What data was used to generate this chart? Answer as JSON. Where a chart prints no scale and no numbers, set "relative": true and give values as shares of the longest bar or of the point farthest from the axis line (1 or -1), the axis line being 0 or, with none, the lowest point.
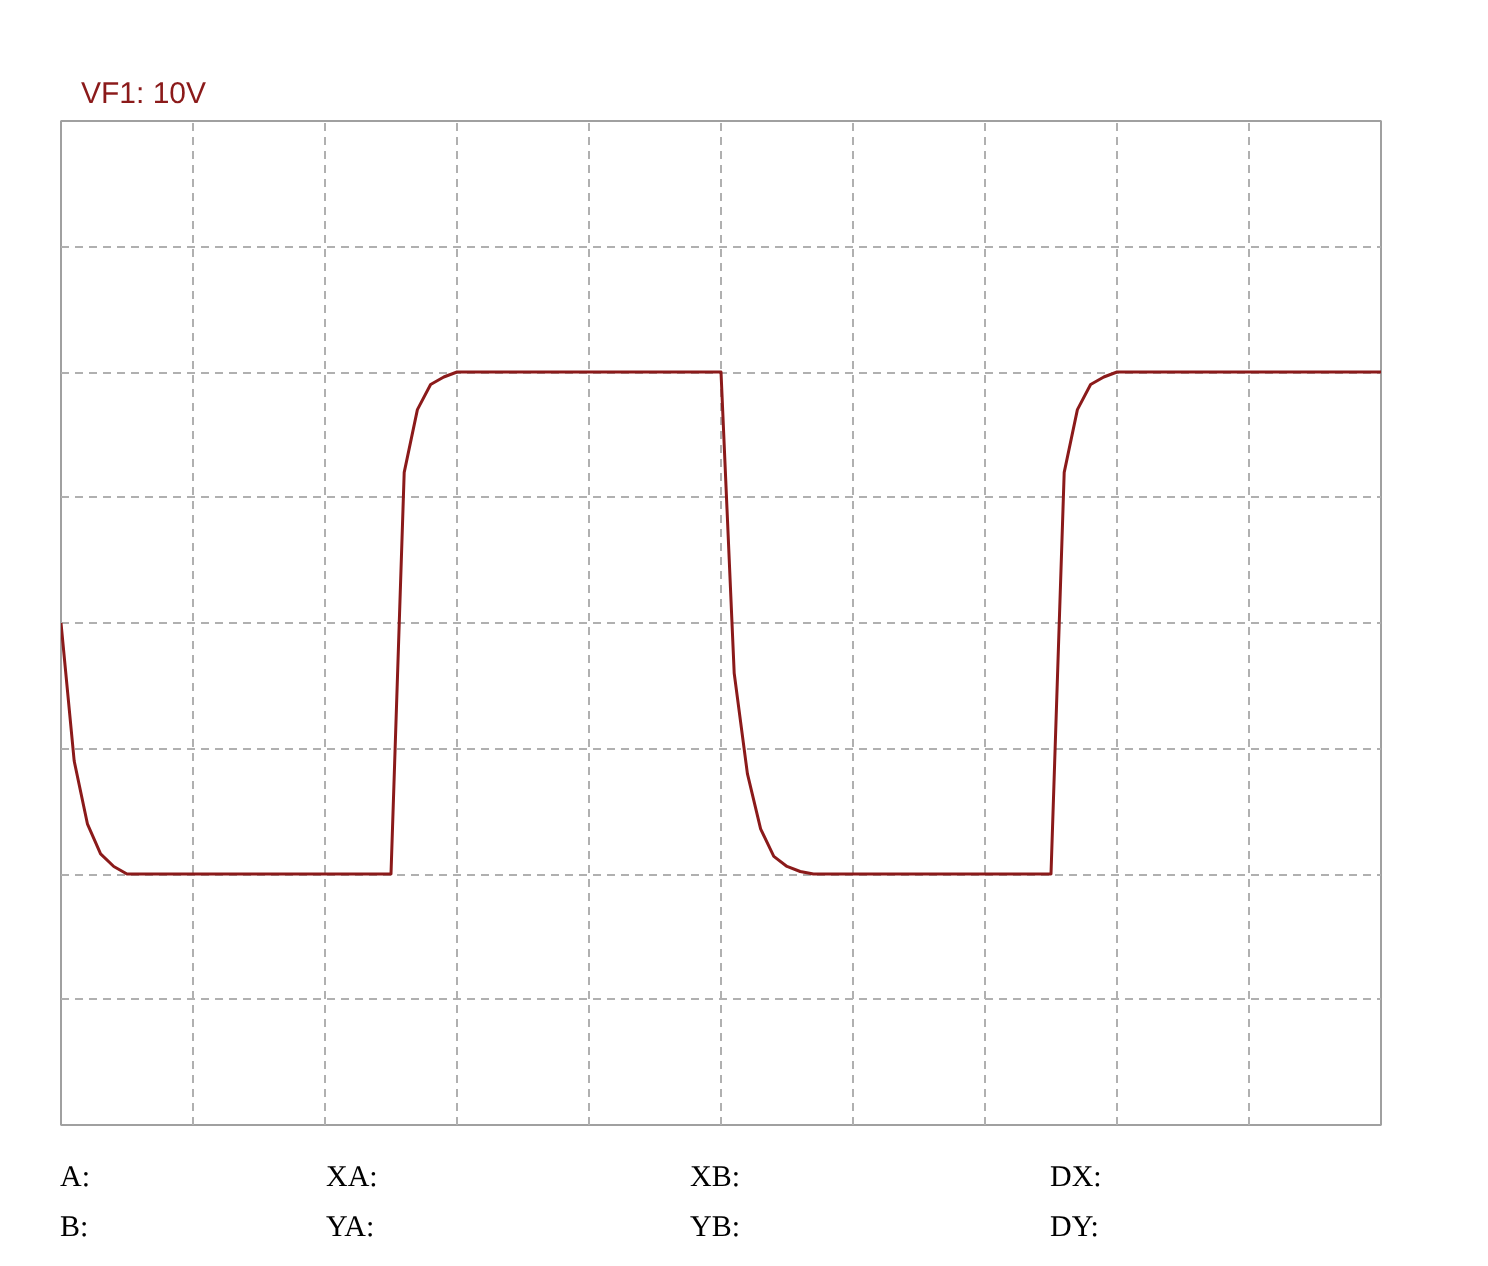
{
  "chart_data": {
    "type": "line",
    "title": "VF1: 10V",
    "relative": true,
    "grid": true,
    "marker": "none",
    "line_style": "solid",
    "categories": [
      null,
      null,
      null,
      null,
      null,
      null,
      null,
      null,
      null,
      null,
      null,
      null,
      null,
      null,
      null,
      null,
      null,
      null,
      null,
      null,
      null,
      null,
      null,
      null,
      null,
      null,
      null,
      null,
      null,
      null,
      null,
      null,
      null,
      null,
      null,
      null,
      null,
      null,
      null,
      null,
      null,
      null,
      null,
      null,
      null,
      null,
      null,
      null,
      null,
      null,
      null,
      null,
      null,
      null,
      null,
      null,
      null,
      null,
      null,
      null,
      null,
      null,
      null,
      null,
      null,
      null,
      null,
      null,
      null,
      null,
      null,
      null,
      null,
      null,
      null,
      null,
      null,
      null,
      null,
      null,
      null,
      null,
      null,
      null,
      null,
      null,
      null,
      null,
      null,
      null,
      null,
      null,
      null,
      null,
      null,
      null,
      null,
      null,
      null,
      null,
      null
    ],
    "series": [
      {
        "color": "#8b1a1a",
        "values": [
          0,
          -0.55,
          -0.8,
          -0.92,
          -0.97,
          -1,
          -1,
          -1,
          -1,
          -1,
          -1,
          -1,
          -1,
          -1,
          -1,
          -1,
          -1,
          -1,
          -1,
          -1,
          -1,
          -1,
          -1,
          -1,
          -1,
          -1,
          0.6,
          0.85,
          0.95,
          0.98,
          1,
          1,
          1,
          1,
          1,
          1,
          1,
          1,
          1,
          1,
          1,
          1,
          1,
          1,
          1,
          1,
          1,
          1,
          1,
          1,
          1,
          -0.2,
          -0.6,
          -0.82,
          -0.93,
          -0.97,
          -0.99,
          -1,
          -1,
          -1,
          -1,
          -1,
          -1,
          -1,
          -1,
          -1,
          -1,
          -1,
          -1,
          -1,
          -1,
          -1,
          -1,
          -1,
          -1,
          -1,
          0.6,
          0.85,
          0.95,
          0.98,
          1,
          1,
          1,
          1,
          1,
          1,
          1,
          1,
          1,
          1,
          1,
          1,
          1,
          1,
          1,
          1,
          1,
          1,
          1,
          1,
          1
        ]
      }
    ],
    "annotations": [
      "A:",
      "XA:",
      "XB:",
      "DX:",
      "B:",
      "YA:",
      "YB:",
      "DY:"
    ]
  }
}
